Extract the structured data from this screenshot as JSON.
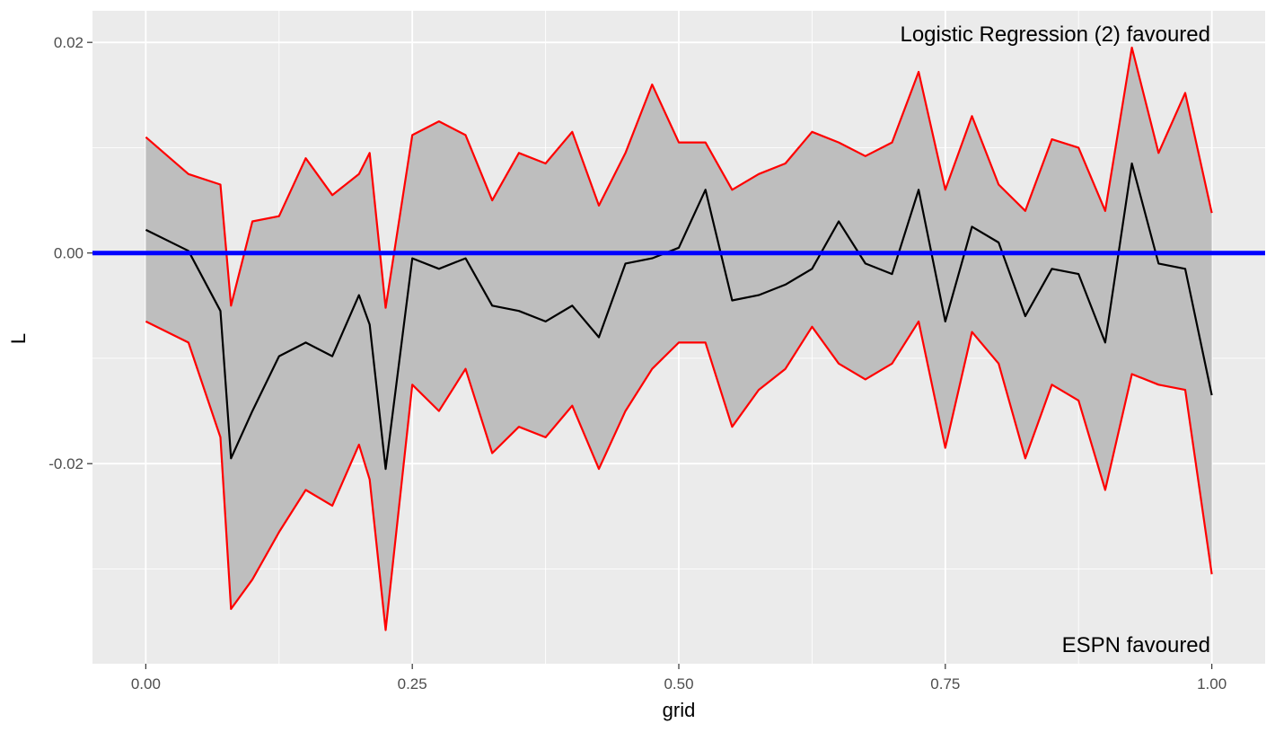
{
  "chart_data": {
    "type": "line",
    "xlabel": "grid",
    "ylabel": "L",
    "xlim": [
      -0.05,
      1.05
    ],
    "ylim": [
      -0.039,
      0.023
    ],
    "x_ticks": [
      0.0,
      0.25,
      0.5,
      0.75,
      1.0
    ],
    "x_tick_labels": [
      "0.00",
      "0.25",
      "0.50",
      "0.75",
      "1.00"
    ],
    "y_ticks": [
      0.02,
      0.0,
      -0.02
    ],
    "y_tick_labels": [
      "0.02",
      "0.00",
      "-0.02"
    ],
    "grid": true,
    "reference_line": {
      "y": 0.0,
      "color": "#0000ff"
    },
    "band_color": "#bebebe",
    "annotations": {
      "top_right": "Logistic Regression (2) favoured",
      "bottom_right": "ESPN favoured"
    },
    "x": [
      0.0,
      0.04,
      0.07,
      0.08,
      0.1,
      0.125,
      0.15,
      0.175,
      0.2,
      0.21,
      0.225,
      0.25,
      0.275,
      0.3,
      0.325,
      0.35,
      0.375,
      0.4,
      0.425,
      0.45,
      0.475,
      0.5,
      0.525,
      0.55,
      0.575,
      0.6,
      0.625,
      0.65,
      0.675,
      0.7,
      0.725,
      0.75,
      0.775,
      0.8,
      0.825,
      0.85,
      0.875,
      0.9,
      0.925,
      0.95,
      0.975,
      1.0
    ],
    "series": [
      {
        "color": "#000000",
        "values": [
          0.0022,
          0.0002,
          -0.0055,
          -0.0195,
          -0.015,
          -0.0098,
          -0.0085,
          -0.0098,
          -0.004,
          -0.0068,
          -0.0205,
          -0.0005,
          -0.0015,
          -0.0005,
          -0.005,
          -0.0055,
          -0.0065,
          -0.005,
          -0.008,
          -0.001,
          -0.0005,
          0.0005,
          0.006,
          -0.0045,
          -0.004,
          -0.003,
          -0.0015,
          0.003,
          -0.001,
          -0.002,
          0.006,
          -0.0065,
          0.0025,
          0.001,
          -0.006,
          -0.0015,
          -0.002,
          -0.0085,
          0.0085,
          -0.001,
          -0.0015,
          -0.0135
        ]
      },
      {
        "color": "#ff0000",
        "values": [
          0.011,
          0.0075,
          0.0065,
          -0.005,
          0.003,
          0.0035,
          0.009,
          0.0055,
          0.0075,
          0.0095,
          -0.0052,
          0.0112,
          0.0125,
          0.0112,
          0.005,
          0.0095,
          0.0085,
          0.0115,
          0.0045,
          0.0095,
          0.016,
          0.0105,
          0.0105,
          0.006,
          0.0075,
          0.0085,
          0.0115,
          0.0105,
          0.0092,
          0.0105,
          0.0172,
          0.006,
          0.013,
          0.0065,
          0.004,
          0.0108,
          0.01,
          0.004,
          0.0195,
          0.0095,
          0.0152,
          0.0038
        ]
      },
      {
        "color": "#ff0000",
        "values": [
          -0.0065,
          -0.0085,
          -0.0175,
          -0.0338,
          -0.031,
          -0.0265,
          -0.0225,
          -0.024,
          -0.0182,
          -0.0215,
          -0.0358,
          -0.0125,
          -0.015,
          -0.011,
          -0.019,
          -0.0165,
          -0.0175,
          -0.0145,
          -0.0205,
          -0.015,
          -0.011,
          -0.0085,
          -0.0085,
          -0.0165,
          -0.013,
          -0.011,
          -0.007,
          -0.0105,
          -0.012,
          -0.0105,
          -0.0065,
          -0.0185,
          -0.0075,
          -0.0105,
          -0.0195,
          -0.0125,
          -0.014,
          -0.0225,
          -0.0115,
          -0.0125,
          -0.013,
          -0.0305
        ]
      }
    ]
  }
}
